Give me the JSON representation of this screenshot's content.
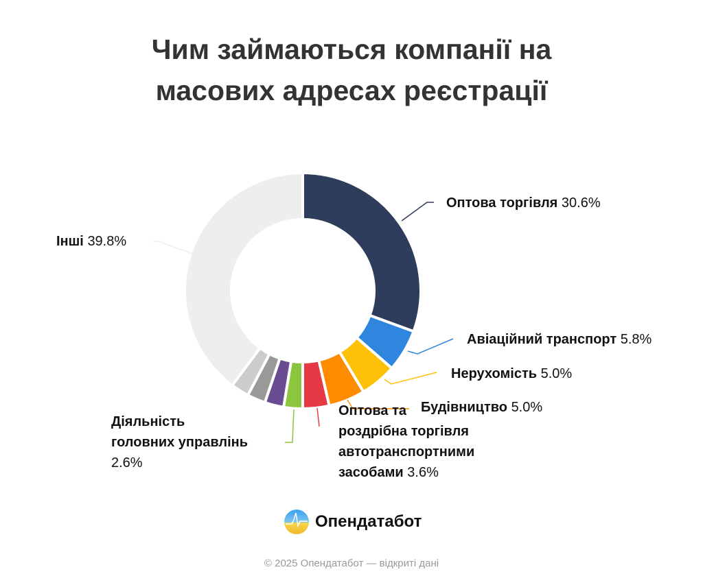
{
  "title": [
    "Чим займаються компанії на",
    "масових адресах реєстрації"
  ],
  "chart_data": {
    "type": "pie",
    "variant": "donut",
    "title": "Чим займаються компанії на масових адресах реєстрації",
    "start": "top",
    "direction": "clockwise",
    "slices": [
      {
        "name": "Оптова торгівля",
        "value": 30.6,
        "label": "30.6%",
        "color": "#2e3d5c"
      },
      {
        "name": "Авіаційний транспорт",
        "value": 5.8,
        "label": "5.8%",
        "color": "#2e86de"
      },
      {
        "name": "Нерухомість",
        "value": 5.0,
        "label": "5.0%",
        "color": "#ffc107"
      },
      {
        "name": "Будівництво",
        "value": 5.0,
        "label": "5.0%",
        "color": "#ff8c00"
      },
      {
        "name": "Оптова та роздрібна торгівля автотранспортними засобами",
        "value": 3.6,
        "label": "3.6%",
        "color": "#e63946"
      },
      {
        "name": "Діяльність головних управлінь",
        "value": 2.6,
        "label": "2.6%",
        "color": "#8cc63f"
      },
      {
        "name": "",
        "value": 2.6,
        "label": "",
        "color": "#6a4c93"
      },
      {
        "name": "",
        "value": 2.5,
        "label": "",
        "color": "#999999"
      },
      {
        "name": "",
        "value": 2.5,
        "label": "",
        "color": "#cccccc"
      },
      {
        "name": "Інші",
        "value": 39.8,
        "label": "39.8%",
        "color": "#eeeeee"
      }
    ]
  },
  "labels": {
    "opt_name": "Оптова торгівля",
    "opt_val": "30.6%",
    "avia_name": "Авіаційний транспорт",
    "avia_val": "5.8%",
    "nerukh_name": "Нерухомість",
    "nerukh_val": "5.0%",
    "bud_name": "Будівництво",
    "bud_val": "5.0%",
    "auto_name": [
      "Оптова та",
      "роздрібна торгівля",
      "автотранспортними",
      "засобами"
    ],
    "auto_val": "3.6%",
    "gol_name": [
      "Діяльність",
      "головних управлінь"
    ],
    "gol_val": "2.6%",
    "inshi_name": "Інші",
    "inshi_val": "39.8%"
  },
  "brand": "Опендатабот",
  "footer": "© 2025 Опендатабот — відкриті дані"
}
